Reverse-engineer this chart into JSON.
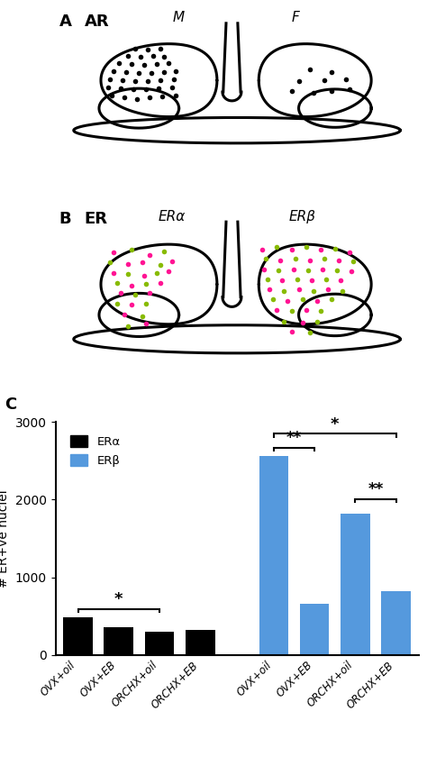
{
  "panel_A_label": "A",
  "panel_A_title": "AR",
  "panel_A_M_label": "M",
  "panel_A_F_label": "F",
  "panel_B_label": "B",
  "panel_B_title": "ER",
  "panel_B_ERa_label": "ERα",
  "panel_B_ERb_label": "ERβ",
  "panel_C_label": "C",
  "ERa_values": [
    480,
    360,
    300,
    320
  ],
  "ERb_values": [
    2560,
    660,
    1820,
    820
  ],
  "ERa_color": "#000000",
  "ERb_color": "#5599DD",
  "ylabel": "# ER+ve nuclei",
  "ylim": [
    0,
    3000
  ],
  "yticks": [
    0,
    1000,
    2000,
    3000
  ],
  "dot_color_black": "#000000",
  "dot_color_pink": "#FF1493",
  "dot_color_green": "#88BB00",
  "background_color": "#ffffff",
  "lw": 2.2
}
